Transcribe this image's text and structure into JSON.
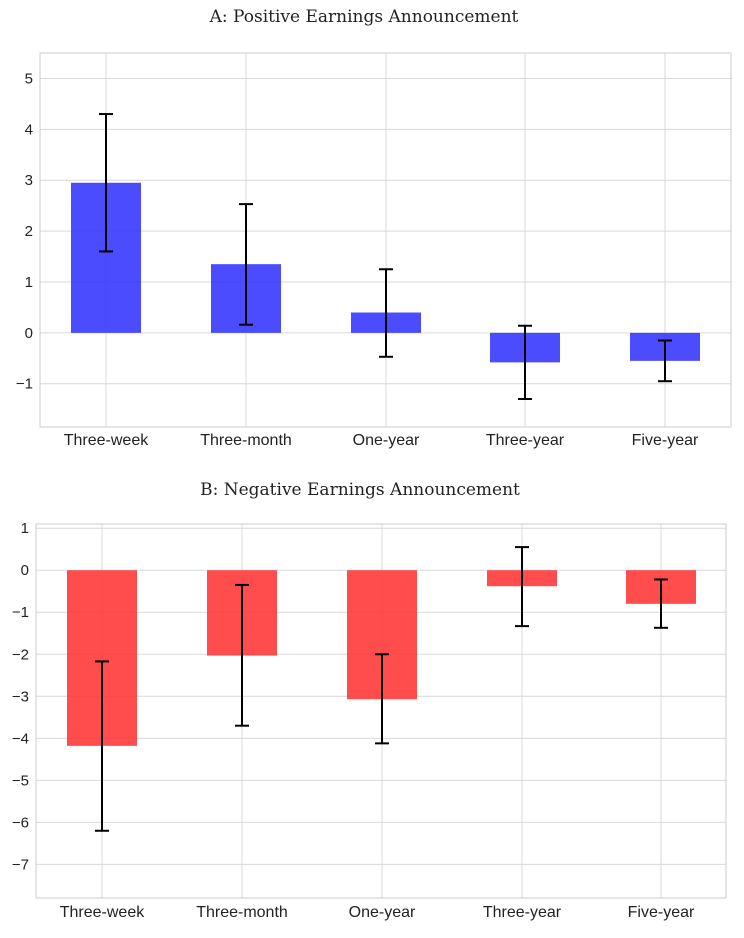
{
  "chart_data": [
    {
      "type": "bar",
      "title": "A: Positive Earnings Announcement",
      "categories": [
        "Three-week",
        "Three-month",
        "One-year",
        "Three-year",
        "Five-year"
      ],
      "values": [
        2.95,
        1.35,
        0.4,
        -0.58,
        -0.55
      ],
      "error_low": [
        1.6,
        0.16,
        -0.47,
        -1.3,
        -0.95
      ],
      "error_high": [
        4.3,
        2.53,
        1.25,
        0.14,
        -0.15
      ],
      "ylim": [
        -1.85,
        5.5
      ],
      "yticks": [
        -1,
        0,
        1,
        2,
        3,
        4,
        5
      ],
      "ytick_labels": [
        "−1",
        "0",
        "1",
        "2",
        "3",
        "4",
        "5"
      ],
      "color": "#3333ff",
      "xlabel": "",
      "ylabel": "",
      "grid": true
    },
    {
      "type": "bar",
      "title": "B: Negative Earnings Announcement",
      "categories": [
        "Three-week",
        "Three-month",
        "One-year",
        "Three-year",
        "Five-year"
      ],
      "values": [
        -4.18,
        -2.03,
        -3.07,
        -0.38,
        -0.8
      ],
      "error_low": [
        -6.2,
        -3.7,
        -4.12,
        -1.33,
        -1.37
      ],
      "error_high": [
        -2.17,
        -0.35,
        -2.0,
        0.55,
        -0.22
      ],
      "ylim": [
        -7.8,
        1.1
      ],
      "yticks": [
        -7,
        -6,
        -5,
        -4,
        -3,
        -2,
        -1,
        0,
        1
      ],
      "ytick_labels": [
        "−7",
        "−6",
        "−5",
        "−4",
        "−3",
        "−2",
        "−1",
        "0",
        "1"
      ],
      "color": "#ff3333",
      "xlabel": "",
      "ylabel": "",
      "grid": true
    }
  ]
}
